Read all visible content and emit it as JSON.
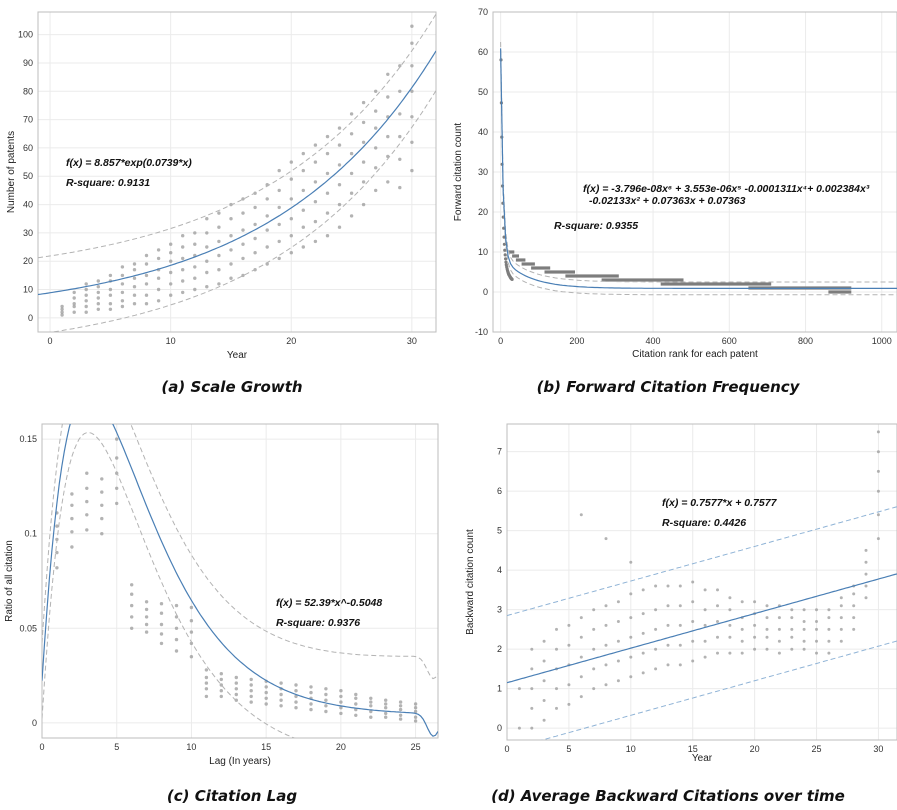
{
  "chart_data": [
    {
      "id": "a",
      "type": "scatter",
      "caption": "(a) Scale Growth",
      "xlabel": "Year",
      "ylabel": "Number of patents",
      "xlim": [
        -1,
        32
      ],
      "ylim": [
        -5,
        108
      ],
      "xticks": [
        0,
        10,
        20,
        30
      ],
      "yticks": [
        0,
        10,
        20,
        30,
        40,
        50,
        60,
        70,
        80,
        90,
        100
      ],
      "grid": true,
      "annotations": [
        "f(x) = 8.857*exp(0.0739*x)",
        "R-square: 0.9131"
      ],
      "fit": {
        "model": "exponential",
        "a": 8.857,
        "b": 0.0739
      },
      "bounds": {
        "lower_offset": -14,
        "upper_offset": 13
      },
      "points": [
        {
          "x": 1,
          "y": [
            1,
            2,
            3,
            4
          ]
        },
        {
          "x": 2,
          "y": [
            2,
            4,
            5,
            7,
            9
          ]
        },
        {
          "x": 3,
          "y": [
            2,
            4,
            6,
            8,
            10,
            12
          ]
        },
        {
          "x": 4,
          "y": [
            3,
            5,
            7,
            9,
            11,
            13
          ]
        },
        {
          "x": 5,
          "y": [
            3,
            5,
            8,
            10,
            13,
            15
          ]
        },
        {
          "x": 6,
          "y": [
            4,
            6,
            9,
            12,
            15,
            18
          ]
        },
        {
          "x": 7,
          "y": [
            5,
            8,
            11,
            14,
            17,
            19
          ]
        },
        {
          "x": 8,
          "y": [
            5,
            8,
            12,
            15,
            19,
            22
          ]
        },
        {
          "x": 9,
          "y": [
            6,
            10,
            14,
            17,
            21,
            24
          ]
        },
        {
          "x": 10,
          "y": [
            8,
            12,
            16,
            20,
            23,
            26
          ]
        },
        {
          "x": 11,
          "y": [
            9,
            13,
            17,
            21,
            25,
            29
          ]
        },
        {
          "x": 12,
          "y": [
            10,
            14,
            18,
            22,
            26,
            30
          ]
        },
        {
          "x": 13,
          "y": [
            11,
            16,
            20,
            25,
            30,
            35
          ]
        },
        {
          "x": 14,
          "y": [
            12,
            17,
            22,
            27,
            32,
            37
          ]
        },
        {
          "x": 15,
          "y": [
            14,
            19,
            24,
            29,
            35,
            40
          ]
        },
        {
          "x": 16,
          "y": [
            15,
            21,
            26,
            31,
            37,
            42
          ]
        },
        {
          "x": 17,
          "y": [
            17,
            23,
            28,
            33,
            39,
            44
          ]
        },
        {
          "x": 18,
          "y": [
            19,
            25,
            31,
            36,
            42,
            47
          ]
        },
        {
          "x": 19,
          "y": [
            21,
            27,
            33,
            39,
            45,
            52
          ]
        },
        {
          "x": 20,
          "y": [
            23,
            29,
            35,
            42,
            49,
            55
          ]
        },
        {
          "x": 21,
          "y": [
            25,
            32,
            38,
            45,
            52,
            58
          ]
        },
        {
          "x": 22,
          "y": [
            27,
            34,
            41,
            48,
            55,
            61
          ]
        },
        {
          "x": 23,
          "y": [
            29,
            37,
            44,
            51,
            58,
            64
          ]
        },
        {
          "x": 24,
          "y": [
            32,
            40,
            47,
            54,
            61,
            67
          ]
        },
        {
          "x": 25,
          "y": [
            36,
            44,
            51,
            58,
            65,
            72
          ]
        },
        {
          "x": 26,
          "y": [
            40,
            48,
            55,
            62,
            69,
            76
          ]
        },
        {
          "x": 27,
          "y": [
            45,
            53,
            60,
            67,
            73,
            80
          ]
        },
        {
          "x": 28,
          "y": [
            48,
            57,
            64,
            71,
            78,
            86
          ]
        },
        {
          "x": 29,
          "y": [
            46,
            56,
            64,
            72,
            80,
            89
          ]
        },
        {
          "x": 30,
          "y": [
            52,
            62,
            71,
            80,
            89,
            97,
            103
          ]
        }
      ]
    },
    {
      "id": "b",
      "type": "scatter",
      "caption": "(b) Forward Citation Frequency",
      "xlabel": "Citation rank for each patent",
      "ylabel": "Forward citation count",
      "xlim": [
        -20,
        1040
      ],
      "ylim": [
        -10,
        70
      ],
      "xticks": [
        0,
        200,
        400,
        600,
        800,
        1000
      ],
      "yticks": [
        -10,
        0,
        10,
        20,
        30,
        40,
        50,
        60,
        70
      ],
      "grid": true,
      "annotations": [
        "f(x) = -3.796e-08x⁶ + 3.553e-06x⁵ -0.0001311x⁴+ 0.002384x³",
        "-0.02133x² + 0.07363x + 0.07363",
        "R-square: 0.9355"
      ],
      "bands": [
        {
          "y": 0,
          "x": [
            860,
            920
          ]
        },
        {
          "y": 1,
          "x": [
            650,
            920
          ]
        },
        {
          "y": 2,
          "x": [
            420,
            710
          ]
        },
        {
          "y": 3,
          "x": [
            265,
            480
          ]
        },
        {
          "y": 4,
          "x": [
            170,
            310
          ]
        },
        {
          "y": 5,
          "x": [
            115,
            195
          ]
        },
        {
          "y": 6,
          "x": [
            80,
            130
          ]
        },
        {
          "y": 7,
          "x": [
            55,
            90
          ]
        },
        {
          "y": 8,
          "x": [
            40,
            65
          ]
        },
        {
          "y": 9,
          "x": [
            30,
            48
          ]
        },
        {
          "y": 10,
          "x": [
            22,
            36
          ]
        }
      ]
    },
    {
      "id": "c",
      "type": "scatter",
      "caption": "(c) Citation Lag",
      "xlabel": "Lag (In years)",
      "ylabel": "Ratio of all citation",
      "xlim": [
        0,
        26.5
      ],
      "ylim": [
        -0.008,
        0.158
      ],
      "xticks": [
        0,
        5,
        10,
        15,
        20,
        25
      ],
      "yticks": [
        0,
        0.05,
        0.1,
        0.15
      ],
      "ytick_labels": [
        "0",
        "0.05",
        "0.1",
        "0.15"
      ],
      "grid": true,
      "annotations": [
        "f(x) = 52.39*x^-0.5048",
        "R-square: 0.9376"
      ],
      "points": [
        {
          "x": 1,
          "y": [
            0.082,
            0.09,
            0.097,
            0.104,
            0.111
          ]
        },
        {
          "x": 2,
          "y": [
            0.093,
            0.101,
            0.108,
            0.115,
            0.121
          ]
        },
        {
          "x": 3,
          "y": [
            0.102,
            0.11,
            0.117,
            0.124,
            0.132
          ]
        },
        {
          "x": 4,
          "y": [
            0.1,
            0.108,
            0.115,
            0.122,
            0.129
          ]
        },
        {
          "x": 5,
          "y": [
            0.116,
            0.124,
            0.132,
            0.14,
            0.15
          ]
        },
        {
          "x": 6,
          "y": [
            0.05,
            0.056,
            0.062,
            0.068,
            0.073
          ]
        },
        {
          "x": 7,
          "y": [
            0.048,
            0.052,
            0.056,
            0.06,
            0.064
          ]
        },
        {
          "x": 8,
          "y": [
            0.042,
            0.047,
            0.052,
            0.058,
            0.063
          ]
        },
        {
          "x": 9,
          "y": [
            0.038,
            0.044,
            0.05,
            0.056,
            0.062
          ]
        },
        {
          "x": 10,
          "y": [
            0.035,
            0.042,
            0.048,
            0.054,
            0.061
          ]
        },
        {
          "x": 11,
          "y": [
            0.014,
            0.018,
            0.021,
            0.024,
            0.028
          ]
        },
        {
          "x": 12,
          "y": [
            0.014,
            0.017,
            0.02,
            0.023,
            0.026
          ]
        },
        {
          "x": 13,
          "y": [
            0.012,
            0.015,
            0.018,
            0.021,
            0.024
          ]
        },
        {
          "x": 14,
          "y": [
            0.011,
            0.014,
            0.017,
            0.02,
            0.023
          ]
        },
        {
          "x": 15,
          "y": [
            0.01,
            0.013,
            0.016,
            0.019,
            0.022
          ]
        },
        {
          "x": 16,
          "y": [
            0.009,
            0.012,
            0.015,
            0.018,
            0.021
          ]
        },
        {
          "x": 17,
          "y": [
            0.008,
            0.011,
            0.014,
            0.017,
            0.02
          ]
        },
        {
          "x": 18,
          "y": [
            0.007,
            0.01,
            0.013,
            0.016,
            0.019
          ]
        },
        {
          "x": 19,
          "y": [
            0.006,
            0.009,
            0.012,
            0.015,
            0.018
          ]
        },
        {
          "x": 20,
          "y": [
            0.005,
            0.008,
            0.011,
            0.014,
            0.017
          ]
        },
        {
          "x": 21,
          "y": [
            0.004,
            0.007,
            0.01,
            0.013,
            0.015
          ]
        },
        {
          "x": 22,
          "y": [
            0.003,
            0.006,
            0.009,
            0.011,
            0.013
          ]
        },
        {
          "x": 23,
          "y": [
            0.003,
            0.005,
            0.008,
            0.01,
            0.012
          ]
        },
        {
          "x": 24,
          "y": [
            0.002,
            0.004,
            0.007,
            0.009,
            0.011
          ]
        },
        {
          "x": 25,
          "y": [
            0.001,
            0.003,
            0.006,
            0.008,
            0.01
          ]
        }
      ]
    },
    {
      "id": "d",
      "type": "scatter",
      "caption": "(d) Average Backward Citations over time",
      "xlabel": "Year",
      "ylabel": "Backward citation count",
      "xlim": [
        0,
        31.5
      ],
      "ylim": [
        -0.3,
        7.7
      ],
      "xticks": [
        0,
        5,
        10,
        15,
        20,
        25,
        30
      ],
      "yticks": [
        0,
        1,
        2,
        3,
        4,
        5,
        6,
        7
      ],
      "grid": true,
      "annotations": [
        "f(x) = 0.7577*x + 0.7577",
        "R-square: 0.4426"
      ],
      "points": [
        {
          "x": 1,
          "y": [
            0,
            1
          ]
        },
        {
          "x": 2,
          "y": [
            0,
            0.5,
            1,
            1.5,
            2
          ]
        },
        {
          "x": 3,
          "y": [
            0.2,
            0.7,
            1.2,
            1.7,
            2.2
          ]
        },
        {
          "x": 4,
          "y": [
            0.5,
            1,
            1.5,
            2,
            2.5
          ]
        },
        {
          "x": 5,
          "y": [
            0.6,
            1.1,
            1.6,
            2.1,
            2.6
          ]
        },
        {
          "x": 6,
          "y": [
            0.8,
            1.3,
            1.8,
            2.3,
            2.8,
            5.4
          ]
        },
        {
          "x": 7,
          "y": [
            1,
            1.5,
            2,
            2.5,
            3
          ]
        },
        {
          "x": 8,
          "y": [
            1.1,
            1.6,
            2.1,
            2.6,
            3.1,
            4.8
          ]
        },
        {
          "x": 9,
          "y": [
            1.2,
            1.7,
            2.2,
            2.7,
            3.2
          ]
        },
        {
          "x": 10,
          "y": [
            1.3,
            1.8,
            2.3,
            2.8,
            3.4,
            4.2
          ]
        },
        {
          "x": 11,
          "y": [
            1.4,
            1.9,
            2.4,
            2.9,
            3.5
          ]
        },
        {
          "x": 12,
          "y": [
            1.5,
            2,
            2.5,
            3,
            3.6
          ]
        },
        {
          "x": 13,
          "y": [
            1.6,
            2.1,
            2.6,
            3.1,
            3.6
          ]
        },
        {
          "x": 14,
          "y": [
            1.6,
            2.1,
            2.6,
            3.1,
            3.6
          ]
        },
        {
          "x": 15,
          "y": [
            1.7,
            2.2,
            2.7,
            3.2,
            3.7
          ]
        },
        {
          "x": 16,
          "y": [
            1.8,
            2.2,
            2.6,
            3,
            3.5
          ]
        },
        {
          "x": 17,
          "y": [
            1.9,
            2.3,
            2.7,
            3.1,
            3.5
          ]
        },
        {
          "x": 18,
          "y": [
            1.9,
            2.3,
            2.6,
            3,
            3.3
          ]
        },
        {
          "x": 19,
          "y": [
            1.9,
            2.2,
            2.5,
            2.8,
            3.2
          ]
        },
        {
          "x": 20,
          "y": [
            2,
            2.3,
            2.6,
            2.9,
            3.2
          ]
        },
        {
          "x": 21,
          "y": [
            2,
            2.3,
            2.5,
            2.8,
            3.1
          ]
        },
        {
          "x": 22,
          "y": [
            1.9,
            2.2,
            2.5,
            2.8,
            3.1
          ]
        },
        {
          "x": 23,
          "y": [
            2,
            2.3,
            2.5,
            2.8,
            3
          ]
        },
        {
          "x": 24,
          "y": [
            2,
            2.2,
            2.5,
            2.7,
            3
          ]
        },
        {
          "x": 25,
          "y": [
            1.9,
            2.2,
            2.5,
            2.7,
            3
          ]
        },
        {
          "x": 26,
          "y": [
            1.9,
            2.2,
            2.5,
            2.8,
            3
          ]
        },
        {
          "x": 27,
          "y": [
            2.2,
            2.5,
            2.8,
            3.1,
            3.3
          ]
        },
        {
          "x": 28,
          "y": [
            2.5,
            2.8,
            3.1,
            3.4,
            3.6
          ]
        },
        {
          "x": 29,
          "y": [
            3.3,
            3.6,
            3.9,
            4.2,
            4.5
          ]
        },
        {
          "x": 30,
          "y": [
            4.8,
            5.4,
            6,
            6.5,
            7,
            7.5
          ]
        }
      ]
    }
  ]
}
